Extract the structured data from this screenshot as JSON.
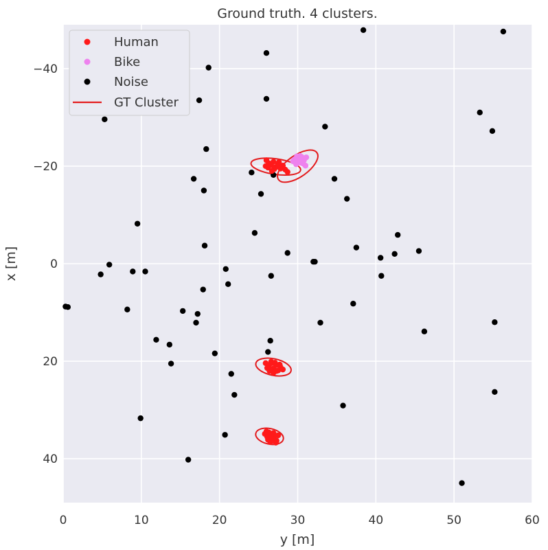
{
  "chart_data": {
    "type": "scatter",
    "title": "Ground truth. 4 clusters.",
    "xlabel": "y [m]",
    "ylabel": "x [m]",
    "xlim": [
      0,
      60
    ],
    "ylim": [
      -49,
      49
    ],
    "y_inverted": true,
    "xticks": [
      0,
      10,
      20,
      30,
      40,
      50,
      60
    ],
    "yticks": [
      -40,
      -20,
      0,
      20,
      40
    ],
    "ytick_labels": [
      "−40",
      "−20",
      "0",
      "20",
      "40"
    ],
    "grid": true,
    "legend_position": "top-left",
    "colors": {
      "background": "#eaeaf2",
      "grid": "#ffffff",
      "human": "#ff1a1a",
      "bike": "#ee82ee",
      "noise": "#000000",
      "gt_cluster": "#e31a1c"
    },
    "legend": [
      {
        "label": "Human",
        "kind": "marker",
        "color": "#ff1a1a"
      },
      {
        "label": "Bike",
        "kind": "marker",
        "color": "#ee82ee"
      },
      {
        "label": "Noise",
        "kind": "marker",
        "color": "#000000"
      },
      {
        "label": "GT Cluster",
        "kind": "line",
        "color": "#e31a1c"
      }
    ],
    "series": [
      {
        "name": "Noise",
        "color": "#000000",
        "points": [
          [
            38.4,
            -47.9
          ],
          [
            56.3,
            -47.6
          ],
          [
            26.0,
            -43.2
          ],
          [
            18.6,
            -40.2
          ],
          [
            17.4,
            -33.5
          ],
          [
            26.0,
            -33.8
          ],
          [
            5.3,
            -29.6
          ],
          [
            53.3,
            -31.0
          ],
          [
            54.9,
            -27.2
          ],
          [
            33.5,
            -28.1
          ],
          [
            18.3,
            -23.5
          ],
          [
            24.1,
            -18.7
          ],
          [
            26.9,
            -18.2
          ],
          [
            16.7,
            -17.4
          ],
          [
            34.7,
            -17.4
          ],
          [
            18.0,
            -15.0
          ],
          [
            25.3,
            -14.3
          ],
          [
            36.3,
            -13.3
          ],
          [
            9.5,
            -8.2
          ],
          [
            24.5,
            -6.3
          ],
          [
            42.8,
            -5.9
          ],
          [
            18.1,
            -3.7
          ],
          [
            37.5,
            -3.3
          ],
          [
            45.5,
            -2.6
          ],
          [
            28.7,
            -2.2
          ],
          [
            40.6,
            -1.2
          ],
          [
            42.4,
            -2.0
          ],
          [
            32.0,
            -0.4
          ],
          [
            32.2,
            -0.4
          ],
          [
            5.9,
            0.2
          ],
          [
            20.8,
            1.1
          ],
          [
            8.9,
            1.6
          ],
          [
            10.5,
            1.6
          ],
          [
            4.8,
            2.2
          ],
          [
            26.6,
            2.5
          ],
          [
            40.7,
            2.5
          ],
          [
            21.1,
            4.2
          ],
          [
            17.9,
            5.3
          ],
          [
            0.3,
            8.8
          ],
          [
            0.6,
            8.9
          ],
          [
            37.1,
            8.2
          ],
          [
            8.2,
            9.4
          ],
          [
            15.3,
            9.7
          ],
          [
            17.2,
            10.3
          ],
          [
            17.0,
            12.1
          ],
          [
            32.9,
            12.1
          ],
          [
            55.2,
            12.0
          ],
          [
            46.2,
            13.9
          ],
          [
            11.9,
            15.6
          ],
          [
            26.5,
            15.8
          ],
          [
            13.6,
            16.6
          ],
          [
            26.2,
            18.1
          ],
          [
            19.4,
            18.4
          ],
          [
            13.8,
            20.5
          ],
          [
            21.5,
            22.6
          ],
          [
            21.9,
            26.9
          ],
          [
            55.2,
            26.3
          ],
          [
            35.8,
            29.1
          ],
          [
            9.9,
            31.7
          ],
          [
            20.7,
            35.1
          ],
          [
            16.0,
            40.2
          ],
          [
            51.0,
            45.0
          ]
        ]
      },
      {
        "name": "Human",
        "color": "#ff1a1a",
        "points": [
          [
            26.0,
            -21.2
          ],
          [
            26.3,
            -20.6
          ],
          [
            26.6,
            -20.2
          ],
          [
            26.9,
            -20.9
          ],
          [
            27.2,
            -19.8
          ],
          [
            27.5,
            -20.4
          ],
          [
            27.8,
            -19.5
          ],
          [
            28.1,
            -20.1
          ],
          [
            28.4,
            -19.3
          ],
          [
            26.2,
            -19.7
          ],
          [
            25.9,
            -20.0
          ],
          [
            27.0,
            -19.4
          ],
          [
            28.7,
            -18.8
          ],
          [
            27.6,
            -20.8
          ],
          [
            26.7,
            -19.0
          ],
          [
            25.9,
            20.4
          ],
          [
            26.3,
            21.0
          ],
          [
            26.6,
            20.1
          ],
          [
            26.9,
            21.5
          ],
          [
            27.2,
            20.8
          ],
          [
            27.5,
            21.9
          ],
          [
            27.8,
            21.2
          ],
          [
            28.1,
            21.7
          ],
          [
            26.4,
            22.0
          ],
          [
            26.9,
            22.4
          ],
          [
            27.3,
            22.0
          ],
          [
            26.1,
            21.4
          ],
          [
            27.7,
            20.7
          ],
          [
            26.6,
            20.4
          ],
          [
            27.1,
            20.3
          ],
          [
            25.8,
            34.9
          ],
          [
            26.1,
            35.5
          ],
          [
            26.4,
            35.0
          ],
          [
            26.7,
            36.0
          ],
          [
            27.0,
            35.4
          ],
          [
            27.3,
            36.3
          ],
          [
            26.5,
            36.6
          ],
          [
            26.2,
            36.1
          ],
          [
            26.9,
            34.7
          ],
          [
            27.5,
            35.2
          ],
          [
            26.0,
            34.4
          ],
          [
            26.6,
            35.7
          ],
          [
            27.2,
            36.7
          ],
          [
            26.3,
            34.6
          ]
        ]
      },
      {
        "name": "Bike",
        "color": "#ee82ee",
        "points": [
          [
            29.6,
            -21.4
          ],
          [
            29.9,
            -22.0
          ],
          [
            30.2,
            -21.3
          ],
          [
            30.5,
            -21.9
          ],
          [
            30.8,
            -21.2
          ],
          [
            31.1,
            -21.8
          ],
          [
            30.4,
            -20.7
          ],
          [
            29.8,
            -20.4
          ],
          [
            30.7,
            -20.5
          ],
          [
            31.0,
            -20.1
          ],
          [
            30.1,
            -20.9
          ],
          [
            29.4,
            -21.0
          ],
          [
            30.3,
            -22.1
          ],
          [
            30.6,
            -21.6
          ]
        ]
      }
    ],
    "gt_clusters": [
      {
        "center": [
          27.2,
          -19.9
        ],
        "rx": 3.2,
        "ry": 1.6,
        "angle": 8
      },
      {
        "center": [
          30.0,
          -20.0
        ],
        "rx": 3.0,
        "ry": 2.2,
        "angle": -35
      },
      {
        "center": [
          26.9,
          21.2
        ],
        "rx": 2.3,
        "ry": 1.7,
        "angle": 12
      },
      {
        "center": [
          26.4,
          35.4
        ],
        "rx": 1.8,
        "ry": 1.6,
        "angle": 12
      }
    ]
  }
}
